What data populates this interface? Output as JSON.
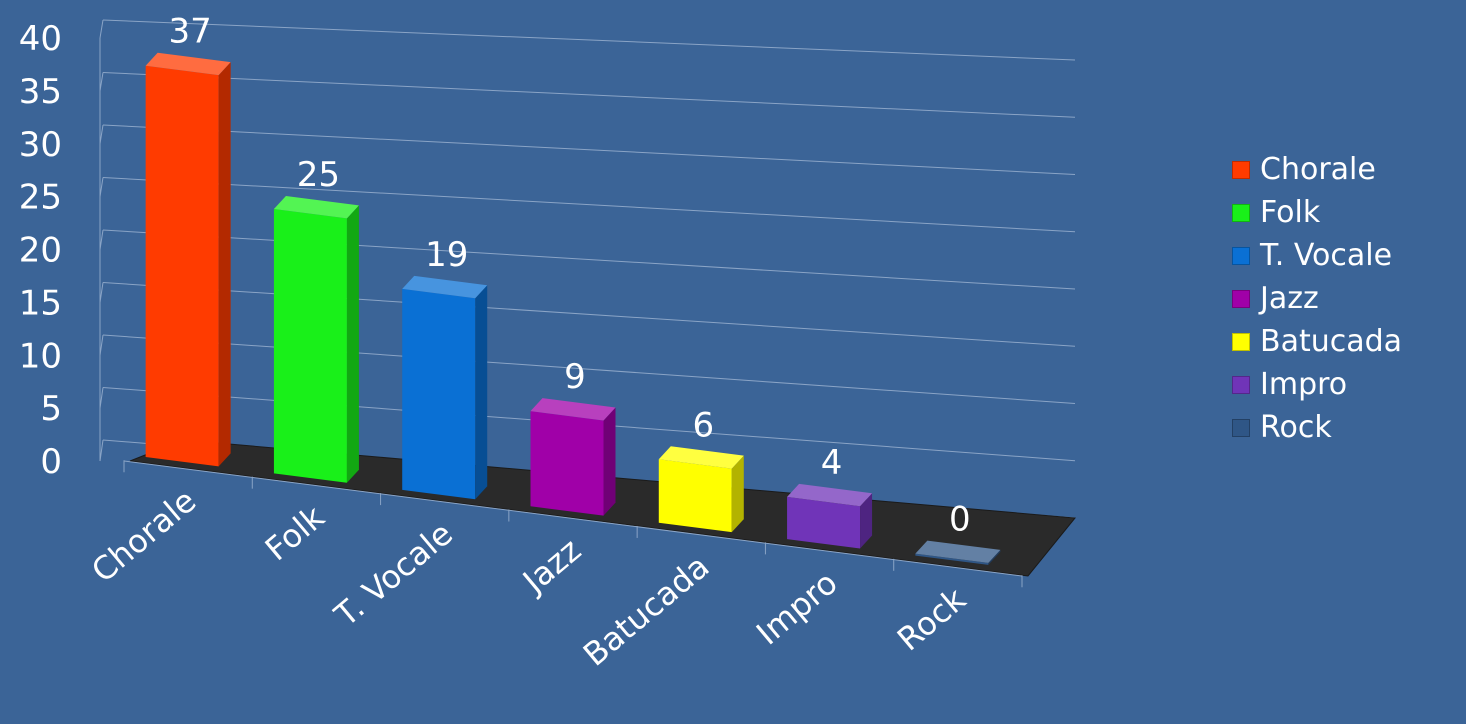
{
  "chart_data": {
    "type": "bar",
    "style": "3d-column",
    "categories": [
      "Chorale",
      "Folk",
      "T. Vocale",
      "Jazz",
      "Batucada",
      "Impro",
      "Rock"
    ],
    "values": [
      37,
      25,
      19,
      9,
      6,
      4,
      0
    ],
    "colors": [
      "#ff3b00",
      "#19f019",
      "#0a70d4",
      "#a000a8",
      "#ffff00",
      "#7034b8",
      "#2f5686"
    ],
    "ylim": [
      0,
      40
    ],
    "yticks": [
      0,
      5,
      10,
      15,
      20,
      25,
      30,
      35,
      40
    ],
    "grid": true,
    "legend_position": "right",
    "data_labels": true
  }
}
